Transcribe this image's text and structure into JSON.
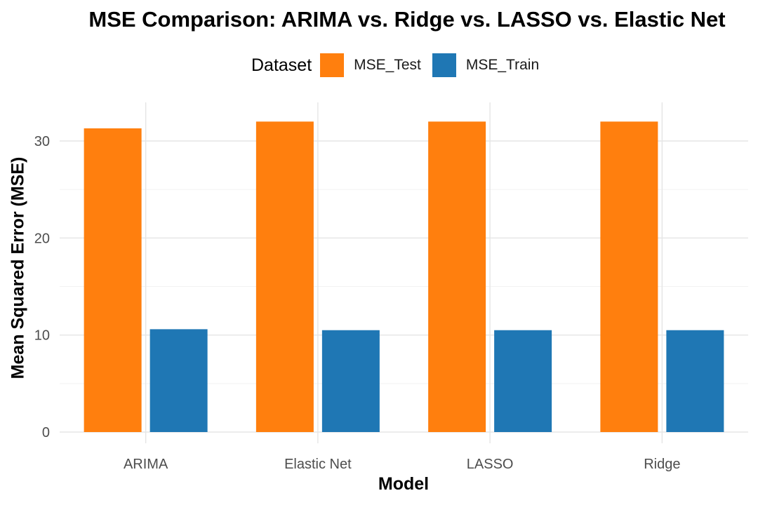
{
  "chart_data": {
    "type": "bar",
    "title": "MSE Comparison: ARIMA vs. Ridge vs. LASSO vs. Elastic Net",
    "xlabel": "Model",
    "ylabel": "Mean Squared Error (MSE)",
    "categories": [
      "ARIMA",
      "Elastic Net",
      "LASSO",
      "Ridge"
    ],
    "series": [
      {
        "name": "MSE_Test",
        "values": [
          31.3,
          32.0,
          32.0,
          32.0
        ],
        "color": "#ff7f0e"
      },
      {
        "name": "MSE_Train",
        "values": [
          10.6,
          10.5,
          10.5,
          10.5
        ],
        "color": "#1f77b4"
      }
    ],
    "ylim": [
      0,
      34
    ],
    "yticks": [
      0,
      10,
      20,
      30
    ],
    "grid": true,
    "legend": {
      "title": "Dataset",
      "position": "top"
    }
  }
}
